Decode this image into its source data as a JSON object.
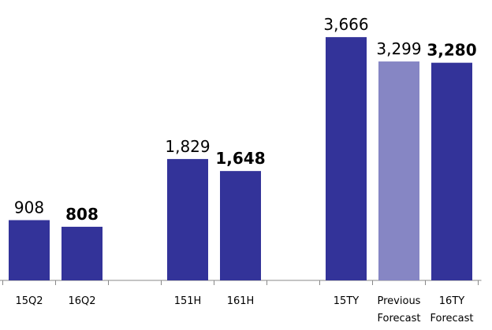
{
  "chart_data": {
    "type": "bar",
    "categories": [
      "15Q2",
      "16Q2",
      null,
      "151H",
      "161H",
      null,
      "15TY",
      "Previous Forecast",
      "16TY Forecast"
    ],
    "values": [
      908,
      808,
      null,
      1829,
      1648,
      null,
      3666,
      3299,
      3280
    ],
    "value_labels": [
      "908",
      "808",
      null,
      "1,829",
      "1,648",
      null,
      "3,666",
      "3,299",
      "3,280"
    ],
    "bold": [
      false,
      true,
      false,
      false,
      true,
      false,
      false,
      false,
      true
    ],
    "colors": [
      "#333399",
      "#333399",
      null,
      "#333399",
      "#333399",
      null,
      "#333399",
      "#8686c4",
      "#333399"
    ],
    "ylim": [
      0,
      4000
    ]
  }
}
